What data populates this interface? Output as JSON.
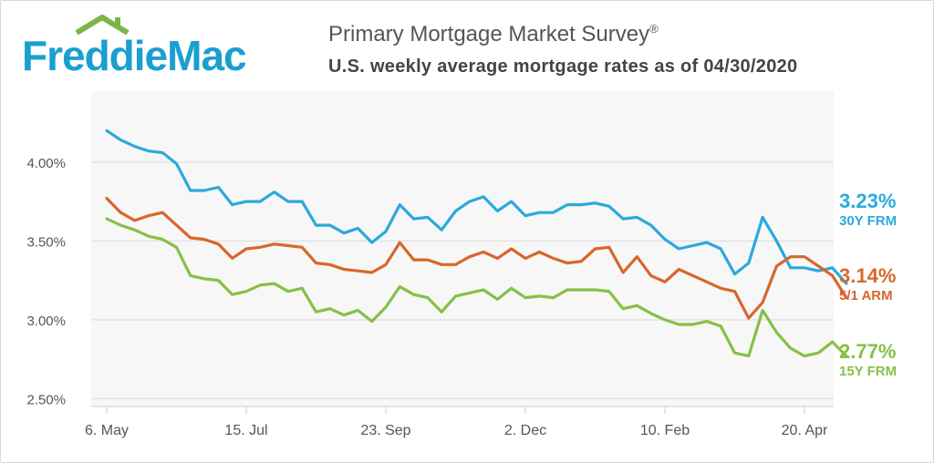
{
  "header": {
    "logo_text": "FreddieMac",
    "title": "Primary Mortgage Market Survey",
    "title_mark": "®",
    "subtitle": "U.S. weekly average mortgage rates as of 04/30/2020"
  },
  "colors": {
    "brand": "#1a9fd0",
    "logo_roof": "#7ab648",
    "frm30": "#2ba9dc",
    "arm51": "#d9662a",
    "frm15": "#86c046",
    "grid": "#e3e3e3",
    "plot_bg": "#f7f7f7"
  },
  "end_labels": [
    {
      "value": "3.23%",
      "name": "30Y FRM",
      "color": "#2ba9dc"
    },
    {
      "value": "3.14%",
      "name": "5/1 ARM",
      "color": "#d9662a"
    },
    {
      "value": "2.77%",
      "name": "15Y FRM",
      "color": "#86c046"
    }
  ],
  "chart_data": {
    "type": "line",
    "title": "Primary Mortgage Market Survey",
    "subtitle": "U.S. weekly average mortgage rates as of 04/30/2020",
    "x_ticks": [
      "6. May",
      "15. Jul",
      "23. Sep",
      "2. Dec",
      "10. Feb",
      "20. Apr"
    ],
    "x_tick_index": [
      0,
      10,
      20,
      30,
      40,
      50
    ],
    "y_ticks": [
      "2.50%",
      "3.00%",
      "3.50%",
      "4.00%"
    ],
    "y_tick_values": [
      2.5,
      3.0,
      3.5,
      4.0
    ],
    "ylim": [
      2.45,
      4.45
    ],
    "grid": true,
    "x_start_date": "2019-05-02",
    "x_end_date": "2020-04-30",
    "series": [
      {
        "name": "30Y FRM",
        "color": "#2ba9dc",
        "values": [
          4.2,
          4.14,
          4.1,
          4.07,
          4.06,
          3.99,
          3.82,
          3.82,
          3.84,
          3.73,
          3.75,
          3.75,
          3.81,
          3.75,
          3.75,
          3.6,
          3.6,
          3.55,
          3.58,
          3.49,
          3.56,
          3.73,
          3.64,
          3.65,
          3.57,
          3.69,
          3.75,
          3.78,
          3.69,
          3.75,
          3.66,
          3.68,
          3.68,
          3.73,
          3.73,
          3.74,
          3.72,
          3.64,
          3.65,
          3.6,
          3.51,
          3.45,
          3.47,
          3.49,
          3.45,
          3.29,
          3.36,
          3.65,
          3.5,
          3.33,
          3.33,
          3.31,
          3.33,
          3.23
        ]
      },
      {
        "name": "5/1 ARM",
        "color": "#d9662a",
        "values": [
          3.77,
          3.68,
          3.63,
          3.66,
          3.68,
          3.6,
          3.52,
          3.51,
          3.48,
          3.39,
          3.45,
          3.46,
          3.48,
          3.47,
          3.46,
          3.36,
          3.35,
          3.32,
          3.31,
          3.3,
          3.35,
          3.49,
          3.38,
          3.38,
          3.35,
          3.35,
          3.4,
          3.43,
          3.39,
          3.45,
          3.39,
          3.43,
          3.39,
          3.36,
          3.37,
          3.45,
          3.46,
          3.3,
          3.4,
          3.28,
          3.24,
          3.32,
          3.28,
          3.24,
          3.2,
          3.18,
          3.01,
          3.11,
          3.34,
          3.4,
          3.4,
          3.34,
          3.28,
          3.14
        ]
      },
      {
        "name": "15Y FRM",
        "color": "#86c046",
        "values": [
          3.64,
          3.6,
          3.57,
          3.53,
          3.51,
          3.46,
          3.28,
          3.26,
          3.25,
          3.16,
          3.18,
          3.22,
          3.23,
          3.18,
          3.2,
          3.05,
          3.07,
          3.03,
          3.06,
          2.99,
          3.08,
          3.21,
          3.16,
          3.14,
          3.05,
          3.15,
          3.17,
          3.19,
          3.13,
          3.2,
          3.14,
          3.15,
          3.14,
          3.19,
          3.19,
          3.19,
          3.18,
          3.07,
          3.09,
          3.04,
          3.0,
          2.97,
          2.97,
          2.99,
          2.96,
          2.79,
          2.77,
          3.06,
          2.92,
          2.82,
          2.77,
          2.79,
          2.86,
          2.77
        ]
      }
    ]
  }
}
